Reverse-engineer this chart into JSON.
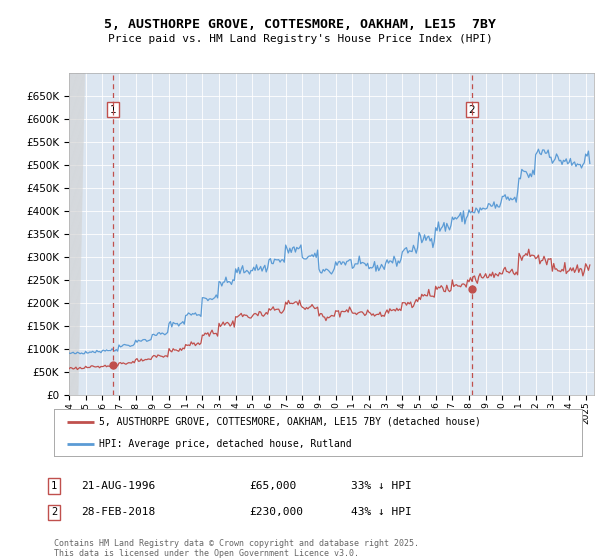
{
  "title": "5, AUSTHORPE GROVE, COTTESMORE, OAKHAM, LE15  7BY",
  "subtitle": "Price paid vs. HM Land Registry's House Price Index (HPI)",
  "ylim": [
    0,
    700000
  ],
  "yticks": [
    0,
    50000,
    100000,
    150000,
    200000,
    250000,
    300000,
    350000,
    400000,
    450000,
    500000,
    550000,
    600000,
    650000
  ],
  "ytick_labels": [
    "£0",
    "£50K",
    "£100K",
    "£150K",
    "£200K",
    "£250K",
    "£300K",
    "£350K",
    "£400K",
    "£450K",
    "£500K",
    "£550K",
    "£600K",
    "£650K"
  ],
  "xlim_start": 1994.0,
  "xlim_end": 2025.5,
  "plot_bg_color": "#dce6f1",
  "hpi_color": "#5b9bd5",
  "price_color": "#c0504d",
  "vline_color": "#c0504d",
  "sale1_x": 1996.64,
  "sale1_y": 65000,
  "sale2_x": 2018.16,
  "sale2_y": 230000,
  "legend_label_red": "5, AUSTHORPE GROVE, COTTESMORE, OAKHAM, LE15 7BY (detached house)",
  "legend_label_blue": "HPI: Average price, detached house, Rutland",
  "annotation1_label": "21-AUG-1996",
  "annotation1_price": "£65,000",
  "annotation1_hpi": "33% ↓ HPI",
  "annotation2_label": "28-FEB-2018",
  "annotation2_price": "£230,000",
  "annotation2_hpi": "43% ↓ HPI",
  "footer": "Contains HM Land Registry data © Crown copyright and database right 2025.\nThis data is licensed under the Open Government Licence v3.0.",
  "hpi_trend": {
    "1994": 90000,
    "1995": 94000,
    "1996": 97000,
    "1997": 108000,
    "1998": 118000,
    "1999": 132000,
    "2000": 155000,
    "2001": 175000,
    "2002": 210000,
    "2003": 245000,
    "2004": 270000,
    "2005": 275000,
    "2006": 292000,
    "2007": 315000,
    "2008": 300000,
    "2009": 270000,
    "2010": 288000,
    "2011": 282000,
    "2012": 278000,
    "2013": 290000,
    "2014": 315000,
    "2015": 340000,
    "2016": 365000,
    "2017": 385000,
    "2018": 400000,
    "2019": 410000,
    "2020": 425000,
    "2021": 480000,
    "2022": 530000,
    "2023": 510000,
    "2024": 500000,
    "2025": 510000
  },
  "price_trend": {
    "1994": 58000,
    "1995": 60000,
    "1996": 63000,
    "1997": 69000,
    "1998": 75000,
    "1999": 84000,
    "2000": 98000,
    "2001": 110000,
    "2002": 133000,
    "2003": 154000,
    "2004": 171000,
    "2005": 174000,
    "2006": 185000,
    "2007": 199000,
    "2008": 190000,
    "2009": 171000,
    "2010": 182000,
    "2011": 178000,
    "2012": 176000,
    "2013": 184000,
    "2014": 199000,
    "2015": 215000,
    "2016": 231000,
    "2017": 243000,
    "2018": 253000,
    "2019": 259000,
    "2020": 269000,
    "2021": 304000,
    "2022": 295000,
    "2023": 275000,
    "2024": 272000,
    "2025": 278000
  }
}
